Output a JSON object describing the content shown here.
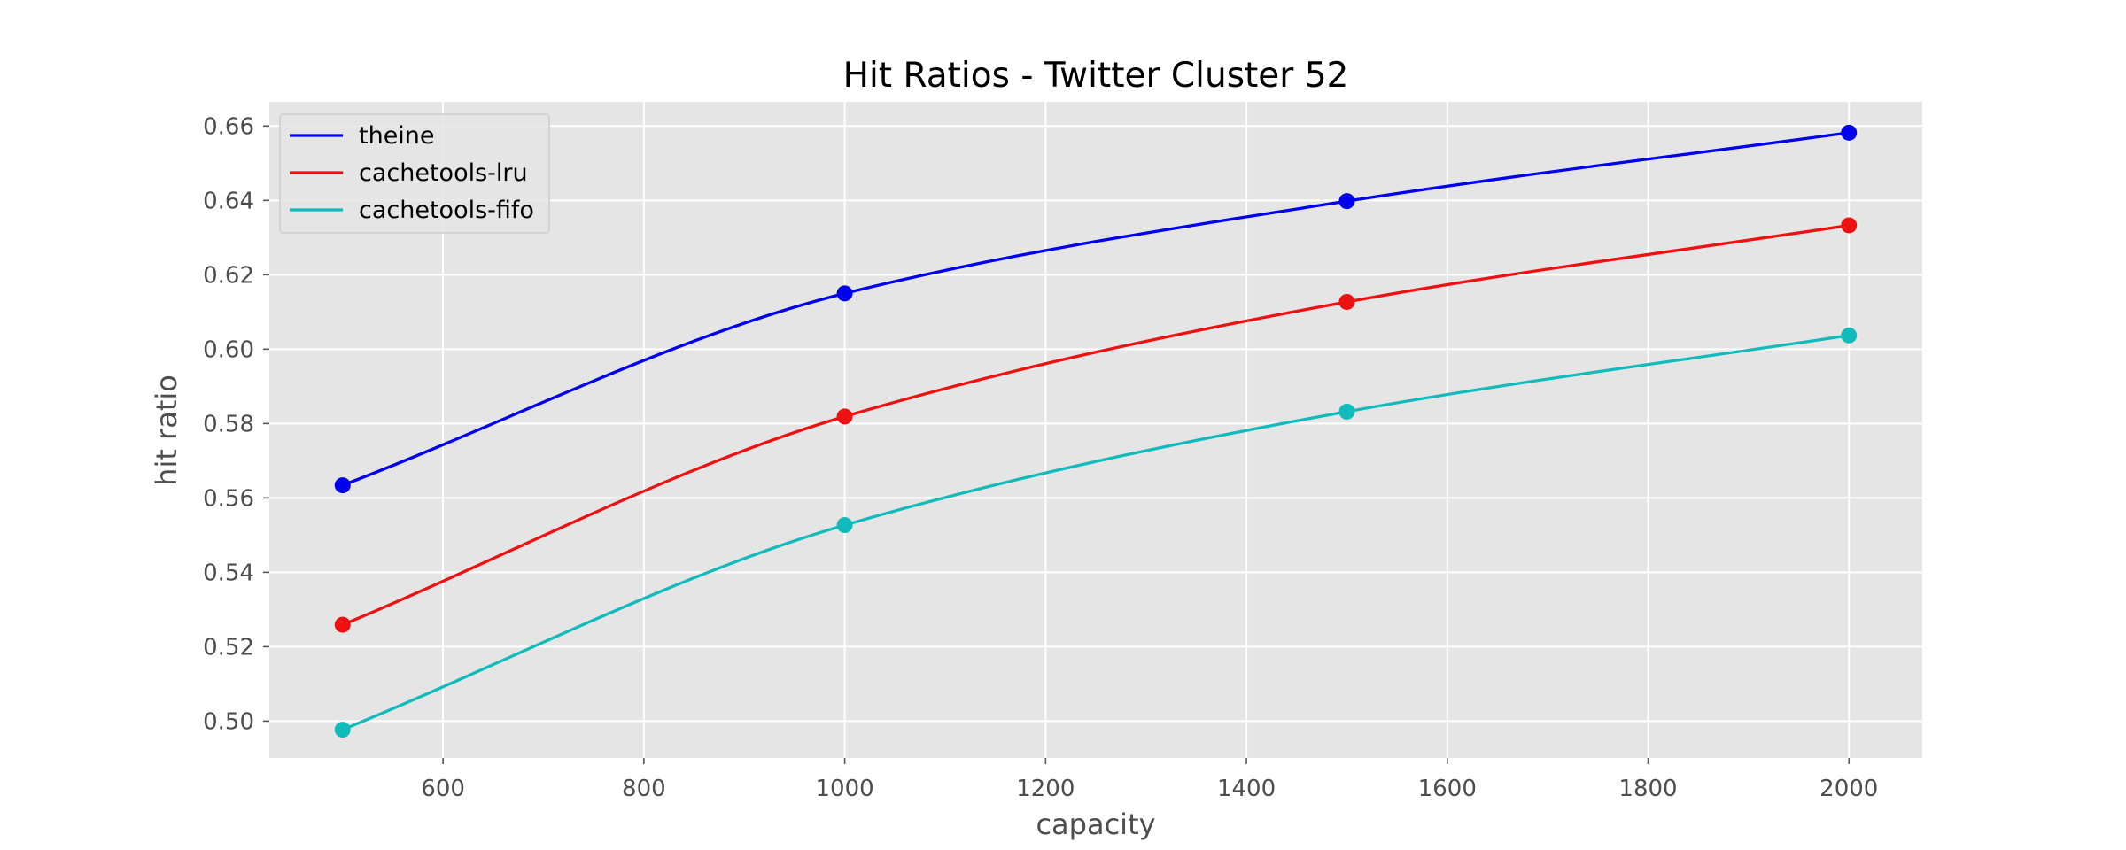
{
  "chart_data": {
    "type": "line",
    "title": "Hit Ratios - Twitter Cluster 52",
    "xlabel": "capacity",
    "ylabel": "hit ratio",
    "x": [
      500,
      1000,
      1500,
      2000
    ],
    "xlim": [
      427,
      2073
    ],
    "ylim": [
      0.4901,
      0.6665
    ],
    "xticks": [
      600,
      800,
      1000,
      1200,
      1400,
      1600,
      1800,
      2000
    ],
    "xtick_labels": [
      "600",
      "800",
      "1000",
      "1200",
      "1400",
      "1600",
      "1800",
      "2000"
    ],
    "yticks": [
      0.5,
      0.52,
      0.54,
      0.56,
      0.58,
      0.6,
      0.62,
      0.64,
      0.66
    ],
    "ytick_labels": [
      "0.50",
      "0.52",
      "0.54",
      "0.56",
      "0.58",
      "0.60",
      "0.62",
      "0.64",
      "0.66"
    ],
    "grid": true,
    "legend_position": "top-left",
    "style": {
      "plot_background": "#e5e5e5",
      "grid_color": "#ffffff"
    },
    "series": [
      {
        "name": "theine",
        "color": "#0000ee",
        "values": [
          0.5634,
          0.615,
          0.6398,
          0.6582
        ]
      },
      {
        "name": "cachetools-lru",
        "color": "#ee1111",
        "values": [
          0.5259,
          0.5819,
          0.6127,
          0.6333
        ]
      },
      {
        "name": "cachetools-fifo",
        "color": "#11bbbb",
        "values": [
          0.4977,
          0.5527,
          0.5832,
          0.6037
        ]
      }
    ]
  }
}
